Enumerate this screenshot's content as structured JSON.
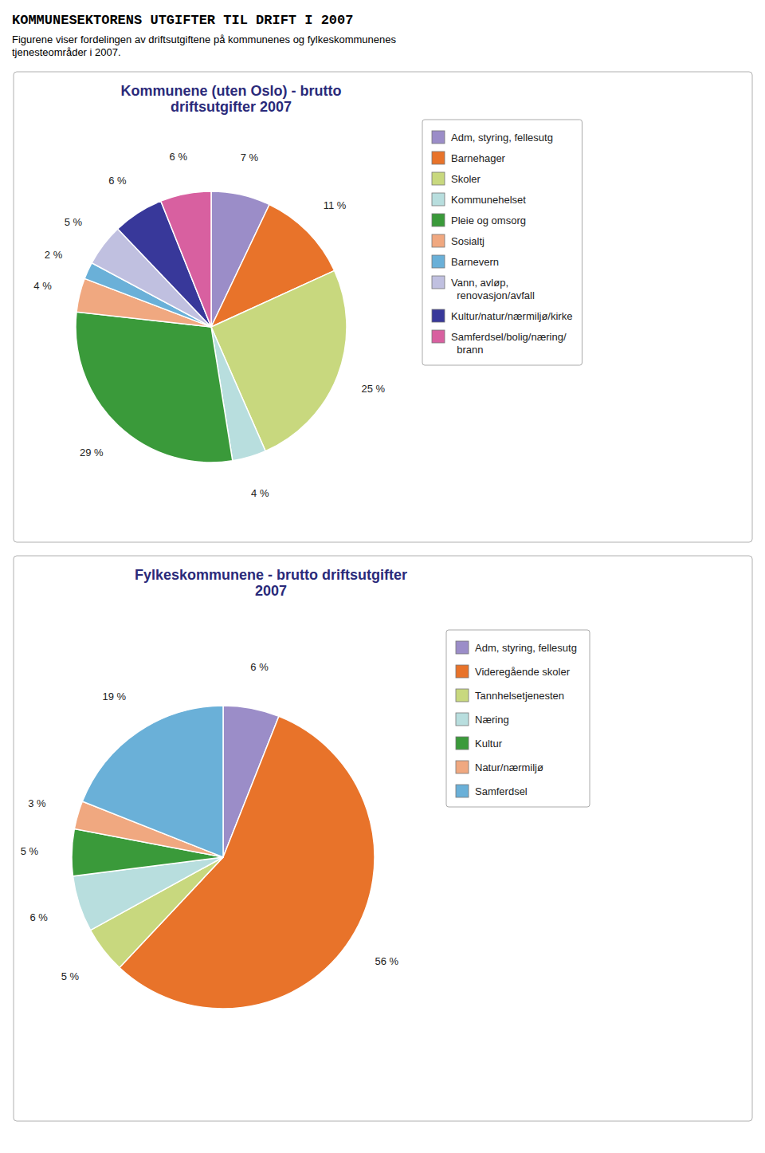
{
  "title": "KOMMUNESEKTORENS UTGIFTER TIL DRIFT I 2007",
  "subtitle": "Figurene viser fordelingen av driftsutgiftene på kommunenes og fylkeskommunenes\ntjenesteområder i 2007.",
  "chart_data": [
    {
      "type": "pie",
      "title": "Kommunene (uten Oslo) - brutto\ndriftsutgifter 2007",
      "categories": [
        "Adm, styring, fellesutg",
        "Barnehager",
        "Skoler",
        "Kommunehelset",
        "Pleie og omsorg",
        "Sosialtj",
        "Barnevern",
        "Vann, avløp,\n  renovasjon/avfall",
        "Kultur/natur/nærmiljø/kirke",
        "Samferdsel/bolig/næring/\n  brann"
      ],
      "values": [
        7,
        11,
        25,
        4,
        29,
        4,
        2,
        5,
        6,
        6
      ],
      "value_labels": [
        "7 %",
        "11 %",
        "25 %",
        "4 %",
        "29 %",
        "4 %",
        "2 %",
        "5 %",
        "6 %",
        "6 %"
      ],
      "colors": [
        "#9b8dc8",
        "#e8732a",
        "#c8d87e",
        "#b8dede",
        "#3a9a3a",
        "#f0a880",
        "#6ab0d8",
        "#c0c0e0",
        "#38389a",
        "#d860a0"
      ],
      "data_labels": true,
      "legend": "right"
    },
    {
      "type": "pie",
      "title": "Fylkeskommunene - brutto driftsutgifter\n2007",
      "categories": [
        "Adm, styring, fellesutg",
        "Videregående skoler",
        "Tannhelsetjenesten",
        "Næring",
        "Kultur",
        "Natur/nærmiljø",
        "Samferdsel"
      ],
      "values": [
        6,
        56,
        5,
        6,
        5,
        3,
        19
      ],
      "value_labels": [
        "6 %",
        "56 %",
        "5 %",
        "6 %",
        "5 %",
        "3 %",
        "19 %"
      ],
      "colors": [
        "#9b8dc8",
        "#e8732a",
        "#c8d87e",
        "#b8dede",
        "#3a9a3a",
        "#f0a880",
        "#6ab0d8"
      ],
      "data_labels": true,
      "legend": "right"
    }
  ]
}
